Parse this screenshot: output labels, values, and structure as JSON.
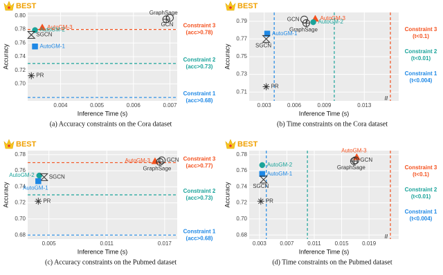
{
  "chart_data": [
    {
      "type": "scatter",
      "title": "(a)  Accuracy constraints on the Cora dataset",
      "badge": "BEST",
      "x_label": "Inference Time (s)",
      "y_label": "Accuracy",
      "constraint_axis": "y",
      "xlim": [
        0.0031,
        0.0072
      ],
      "xticks": [
        0.004,
        0.005,
        0.006,
        0.007
      ],
      "ylim": [
        0.675,
        0.805
      ],
      "yticks": [
        {
          "value": 0.7,
          "label": "0.70"
        },
        0.72,
        0.74,
        0.76,
        0.78,
        {
          "value": 0.8,
          "label": "0.80"
        }
      ],
      "series": [
        {
          "name": "AutoGM-3",
          "color": "#f4511e",
          "marker": "triangle",
          "label_side": "right",
          "x": [
            0.0035
          ],
          "values": [
            0.783
          ]
        },
        {
          "name": "AutoGM-2",
          "color": "#1aa39a",
          "marker": "circle",
          "label_side": "right",
          "x": [
            0.0033
          ],
          "values": [
            0.779
          ]
        },
        {
          "name": "SGCN",
          "color": "#333333",
          "marker": "hourglass",
          "label_side": "right",
          "x": [
            0.0032
          ],
          "values": [
            0.772
          ]
        },
        {
          "name": "AutoGM-1",
          "color": "#1e88e5",
          "marker": "square",
          "label_side": "right",
          "x": [
            0.0033
          ],
          "values": [
            0.755
          ]
        },
        {
          "name": "PR",
          "color": "#333333",
          "marker": "star",
          "label_side": "right",
          "x": [
            0.0032
          ],
          "values": [
            0.712
          ]
        },
        {
          "name": "GraphSage",
          "color": "#333333",
          "marker": "circle-plus",
          "label_side": "above",
          "x": [
            0.0069
          ],
          "values": [
            0.795
          ]
        },
        {
          "name": "GCN",
          "color": "#333333",
          "marker": "circle-open",
          "label_side": "below",
          "x": [
            0.007
          ],
          "values": [
            0.797
          ]
        }
      ],
      "constraints": [
        {
          "name": "Constraint 3",
          "condition": "(acc>0.78)",
          "value": 0.78,
          "color": "#f4511e"
        },
        {
          "name": "Constraint 2",
          "condition": "(acc>0.73)",
          "value": 0.73,
          "color": "#1aa39a"
        },
        {
          "name": "Constraint 1",
          "condition": "(acc>0.68)",
          "value": 0.68,
          "color": "#1e88e5"
        }
      ]
    },
    {
      "type": "scatter",
      "title": "(b)  Time constraints on the Cora dataset",
      "badge": "BEST",
      "x_label": "Inference Time (s)",
      "y_label": "Accuracy",
      "constraint_axis": "x",
      "axis_break": "//",
      "xlim": [
        0.0015,
        0.0145
      ],
      "xticks": [
        0.003,
        0.006,
        0.009,
        0.013
      ],
      "ylim": [
        0.7,
        0.8
      ],
      "yticks": [
        0.71,
        0.73,
        0.75,
        0.77,
        0.79
      ],
      "series": [
        {
          "name": "AutoGM-3",
          "color": "#f4511e",
          "marker": "triangle",
          "label_side": "right",
          "x": [
            0.0081
          ],
          "values": [
            0.793
          ]
        },
        {
          "name": "AutoGM-2",
          "color": "#1aa39a",
          "marker": "circle",
          "label_side": "right",
          "x": [
            0.0079
          ],
          "values": [
            0.789
          ]
        },
        {
          "name": "GCN",
          "color": "#333333",
          "marker": "circle-open",
          "label_side": "left",
          "x": [
            0.007
          ],
          "values": [
            0.792
          ]
        },
        {
          "name": "GraphSage",
          "color": "#333333",
          "marker": "circle-plus",
          "label_side": "below",
          "x": [
            0.0072
          ],
          "values": [
            0.788
          ]
        },
        {
          "name": "AutoGM-1",
          "color": "#1e88e5",
          "marker": "square",
          "label_side": "right",
          "x": [
            0.0033
          ],
          "values": [
            0.776
          ]
        },
        {
          "name": "SGCN",
          "color": "#333333",
          "marker": "hourglass",
          "label_side": "below",
          "x": [
            0.0032
          ],
          "values": [
            0.77
          ]
        },
        {
          "name": "PR",
          "color": "#333333",
          "marker": "star",
          "label_side": "right",
          "x": [
            0.0032
          ],
          "values": [
            0.716
          ]
        }
      ],
      "constraints": [
        {
          "name": "Constraint 3",
          "condition": "(t<0.1)",
          "value": 0.1,
          "color": "#f4511e"
        },
        {
          "name": "Constraint 2",
          "condition": "(t<0.01)",
          "value": 0.01,
          "color": "#1aa39a"
        },
        {
          "name": "Constraint 1",
          "condition": "(t<0.004)",
          "value": 0.004,
          "color": "#1e88e5"
        }
      ]
    },
    {
      "type": "scatter",
      "title": "(c)  Accuracy constraints on the Pubmed dataset",
      "badge": "BEST",
      "x_label": "Inference Time (s)",
      "y_label": "Accuracy",
      "constraint_axis": "y",
      "xlim": [
        0.0028,
        0.0183
      ],
      "xticks": [
        0.005,
        0.011,
        0.017
      ],
      "ylim": [
        0.675,
        0.785
      ],
      "yticks": [
        0.68,
        {
          "value": 0.7,
          "label": "0.70"
        },
        0.72,
        0.74,
        0.76,
        0.78
      ],
      "series": [
        {
          "name": "AutoGM-3",
          "color": "#f4511e",
          "marker": "triangle",
          "label_side": "left",
          "x": [
            0.016
          ],
          "values": [
            0.772
          ]
        },
        {
          "name": "GCN",
          "color": "#333333",
          "marker": "circle-open",
          "label_side": "right",
          "x": [
            0.0167
          ],
          "values": [
            0.773
          ]
        },
        {
          "name": "GraphSage",
          "color": "#333333",
          "marker": "circle-plus",
          "label_side": "below",
          "x": [
            0.0165
          ],
          "values": [
            0.771
          ]
        },
        {
          "name": "AutoGM-2",
          "color": "#1aa39a",
          "marker": "circle",
          "label_side": "left",
          "x": [
            0.004
          ],
          "values": [
            0.754
          ]
        },
        {
          "name": "SGCN",
          "color": "#333333",
          "marker": "hourglass",
          "label_side": "right",
          "x": [
            0.0045
          ],
          "values": [
            0.752
          ]
        },
        {
          "name": "AutoGM-1",
          "color": "#1e88e5",
          "marker": "square",
          "label_side": "below",
          "x": [
            0.0039
          ],
          "values": [
            0.747
          ]
        },
        {
          "name": "PR",
          "color": "#333333",
          "marker": "star",
          "label_side": "right",
          "x": [
            0.0039
          ],
          "values": [
            0.722
          ]
        }
      ],
      "constraints": [
        {
          "name": "Constraint 3",
          "condition": "(acc>0.77)",
          "value": 0.77,
          "color": "#f4511e"
        },
        {
          "name": "Constraint 2",
          "condition": "(acc>0.73)",
          "value": 0.73,
          "color": "#1aa39a"
        },
        {
          "name": "Constraint 1",
          "condition": "(acc>0.68)",
          "value": 0.68,
          "color": "#1e88e5"
        }
      ]
    },
    {
      "type": "scatter",
      "title": "(d)  Time constraints on the Pubmed dataset",
      "badge": "BEST",
      "x_label": "Inference Time (s)",
      "y_label": "Accuracy",
      "constraint_axis": "x",
      "axis_break": "//",
      "xlim": [
        0.0015,
        0.0205
      ],
      "xticks": [
        0.003,
        0.007,
        0.011,
        0.015,
        0.019
      ],
      "ylim": [
        0.675,
        0.785
      ],
      "yticks": [
        0.68,
        {
          "value": 0.7,
          "label": "0.70"
        },
        0.72,
        0.74,
        0.76,
        0.78
      ],
      "series": [
        {
          "name": "AutoGM-3",
          "color": "#f4511e",
          "marker": "triangle",
          "label_side": "above",
          "x": [
            0.0172
          ],
          "values": [
            0.777
          ]
        },
        {
          "name": "GraphSage",
          "color": "#333333",
          "marker": "circle-plus",
          "label_side": "below",
          "x": [
            0.0168
          ],
          "values": [
            0.772
          ]
        },
        {
          "name": "GCN",
          "color": "#333333",
          "marker": "circle-open",
          "label_side": "right",
          "x": [
            0.017
          ],
          "values": [
            0.773
          ]
        },
        {
          "name": "AutoGM-2",
          "color": "#1aa39a",
          "marker": "circle",
          "label_side": "right",
          "x": [
            0.0034
          ],
          "values": [
            0.767
          ]
        },
        {
          "name": "AutoGM-1",
          "color": "#1e88e5",
          "marker": "square",
          "label_side": "right",
          "x": [
            0.0034
          ],
          "values": [
            0.756
          ]
        },
        {
          "name": "SGCN",
          "color": "#333333",
          "marker": "hourglass",
          "label_side": "below",
          "x": [
            0.0036
          ],
          "values": [
            0.749
          ]
        },
        {
          "name": "PR",
          "color": "#333333",
          "marker": "star",
          "label_side": "right",
          "x": [
            0.0032
          ],
          "values": [
            0.722
          ]
        }
      ],
      "constraints": [
        {
          "name": "Constraint 3",
          "condition": "(t<0.1)",
          "value": 0.1,
          "color": "#f4511e"
        },
        {
          "name": "Constraint 2",
          "condition": "(t<0.01)",
          "value": 0.01,
          "color": "#1aa39a"
        },
        {
          "name": "Constraint 1",
          "condition": "(t<0.004)",
          "value": 0.004,
          "color": "#1e88e5"
        }
      ]
    }
  ]
}
